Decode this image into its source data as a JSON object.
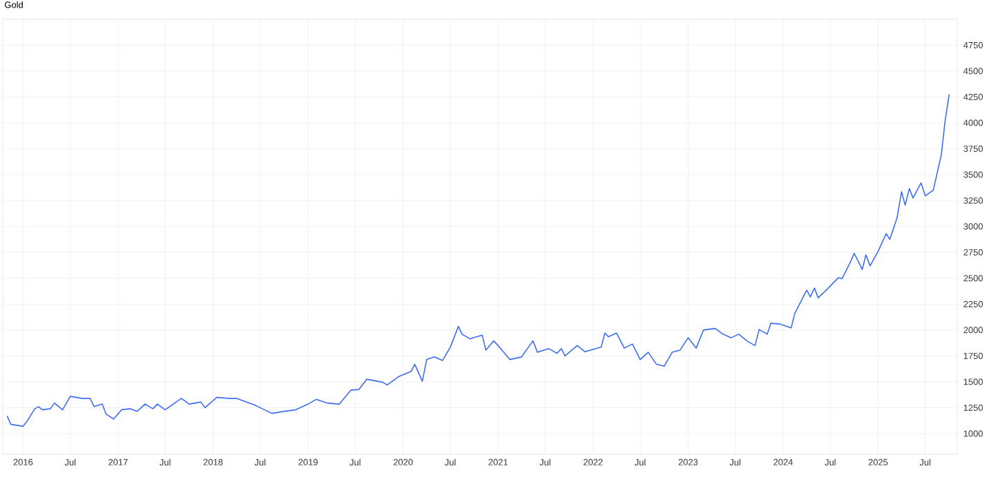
{
  "chart_data": {
    "type": "line",
    "title": "Gold",
    "x": [
      "2015-11-01",
      "2015-11-15",
      "2016-01-01",
      "2016-01-15",
      "2016-02-15",
      "2016-03-01",
      "2016-03-15",
      "2016-04-15",
      "2016-05-01",
      "2016-06-01",
      "2016-07-01",
      "2016-08-15",
      "2016-09-15",
      "2016-10-01",
      "2016-11-01",
      "2016-11-15",
      "2016-12-15",
      "2017-01-15",
      "2017-02-15",
      "2017-03-15",
      "2017-04-15",
      "2017-05-15",
      "2017-06-01",
      "2017-07-01",
      "2017-09-01",
      "2017-10-01",
      "2017-11-15",
      "2017-12-01",
      "2018-01-15",
      "2018-03-01",
      "2018-04-01",
      "2018-06-15",
      "2018-08-15",
      "2018-10-01",
      "2018-11-15",
      "2019-01-01",
      "2019-02-01",
      "2019-03-15",
      "2019-05-01",
      "2019-06-15",
      "2019-07-15",
      "2019-08-15",
      "2019-10-15",
      "2019-11-01",
      "2019-12-15",
      "2020-02-01",
      "2020-02-15",
      "2020-03-15",
      "2020-04-01",
      "2020-05-01",
      "2020-06-01",
      "2020-07-01",
      "2020-08-01",
      "2020-08-15",
      "2020-09-15",
      "2020-11-01",
      "2020-11-15",
      "2020-12-15",
      "2021-01-01",
      "2021-02-15",
      "2021-04-01",
      "2021-05-15",
      "2021-06-01",
      "2021-07-15",
      "2021-08-15",
      "2021-09-01",
      "2021-09-15",
      "2021-11-01",
      "2021-12-01",
      "2022-02-01",
      "2022-02-15",
      "2022-03-01",
      "2022-04-01",
      "2022-05-01",
      "2022-06-01",
      "2022-07-01",
      "2022-08-01",
      "2022-09-01",
      "2022-10-01",
      "2022-11-01",
      "2022-12-01",
      "2023-01-01",
      "2023-02-01",
      "2023-03-01",
      "2023-04-15",
      "2023-05-15",
      "2023-06-15",
      "2023-07-15",
      "2023-08-15",
      "2023-09-15",
      "2023-10-01",
      "2023-11-01",
      "2023-11-15",
      "2023-12-15",
      "2024-02-01",
      "2024-02-15",
      "2024-04-01",
      "2024-04-15",
      "2024-05-01",
      "2024-05-15",
      "2024-06-15",
      "2024-08-01",
      "2024-08-15",
      "2024-09-15",
      "2024-10-01",
      "2024-11-01",
      "2024-11-15",
      "2024-12-01",
      "2025-01-01",
      "2025-02-01",
      "2025-02-15",
      "2025-03-15",
      "2025-04-01",
      "2025-04-15",
      "2025-05-01",
      "2025-05-15",
      "2025-06-15",
      "2025-07-01",
      "2025-08-01",
      "2025-09-01",
      "2025-09-15",
      "2025-10-01"
    ],
    "series": [
      {
        "color": "#3d6cf5",
        "values": [
          1170,
          1090,
          1070,
          1115,
          1240,
          1260,
          1230,
          1240,
          1295,
          1230,
          1360,
          1340,
          1340,
          1260,
          1285,
          1190,
          1140,
          1230,
          1240,
          1215,
          1285,
          1240,
          1285,
          1230,
          1340,
          1285,
          1305,
          1250,
          1350,
          1340,
          1340,
          1270,
          1195,
          1215,
          1230,
          1285,
          1330,
          1295,
          1285,
          1420,
          1425,
          1525,
          1495,
          1470,
          1550,
          1600,
          1670,
          1505,
          1715,
          1740,
          1705,
          1835,
          2035,
          1960,
          1915,
          1950,
          1805,
          1895,
          1850,
          1715,
          1740,
          1895,
          1785,
          1820,
          1775,
          1820,
          1750,
          1850,
          1790,
          1835,
          1970,
          1935,
          1970,
          1825,
          1865,
          1715,
          1785,
          1670,
          1650,
          1785,
          1805,
          1925,
          1825,
          2000,
          2015,
          1960,
          1925,
          1960,
          1895,
          1850,
          2005,
          1960,
          2065,
          2060,
          2020,
          2160,
          2385,
          2320,
          2405,
          2310,
          2385,
          2505,
          2495,
          2650,
          2740,
          2585,
          2725,
          2620,
          2760,
          2930,
          2875,
          3085,
          3335,
          3205,
          3365,
          3275,
          3420,
          3295,
          3350,
          3695,
          4010,
          4275
        ]
      }
    ],
    "xlim": [
      "2015-10-15",
      "2025-11-01"
    ],
    "xticks": [
      {
        "value": "2016-01-01",
        "label": "2016"
      },
      {
        "value": "2016-07-01",
        "label": "Jul"
      },
      {
        "value": "2017-01-01",
        "label": "2017"
      },
      {
        "value": "2017-07-01",
        "label": "Jul"
      },
      {
        "value": "2018-01-01",
        "label": "2018"
      },
      {
        "value": "2018-07-01",
        "label": "Jul"
      },
      {
        "value": "2019-01-01",
        "label": "2019"
      },
      {
        "value": "2019-07-01",
        "label": "Jul"
      },
      {
        "value": "2020-01-01",
        "label": "2020"
      },
      {
        "value": "2020-07-01",
        "label": "Jul"
      },
      {
        "value": "2021-01-01",
        "label": "2021"
      },
      {
        "value": "2021-07-01",
        "label": "Jul"
      },
      {
        "value": "2022-01-01",
        "label": "2022"
      },
      {
        "value": "2022-07-01",
        "label": "Jul"
      },
      {
        "value": "2023-01-01",
        "label": "2023"
      },
      {
        "value": "2023-07-01",
        "label": "Jul"
      },
      {
        "value": "2024-01-01",
        "label": "2024"
      },
      {
        "value": "2024-07-01",
        "label": "Jul"
      },
      {
        "value": "2025-01-01",
        "label": "2025"
      },
      {
        "value": "2025-07-01",
        "label": "Jul"
      }
    ],
    "ylim": [
      800,
      5000
    ],
    "yticks": [
      1000,
      1250,
      1500,
      1750,
      2000,
      2250,
      2500,
      2750,
      3000,
      3250,
      3500,
      3750,
      4000,
      4250,
      4500,
      4750
    ],
    "grid": true
  }
}
